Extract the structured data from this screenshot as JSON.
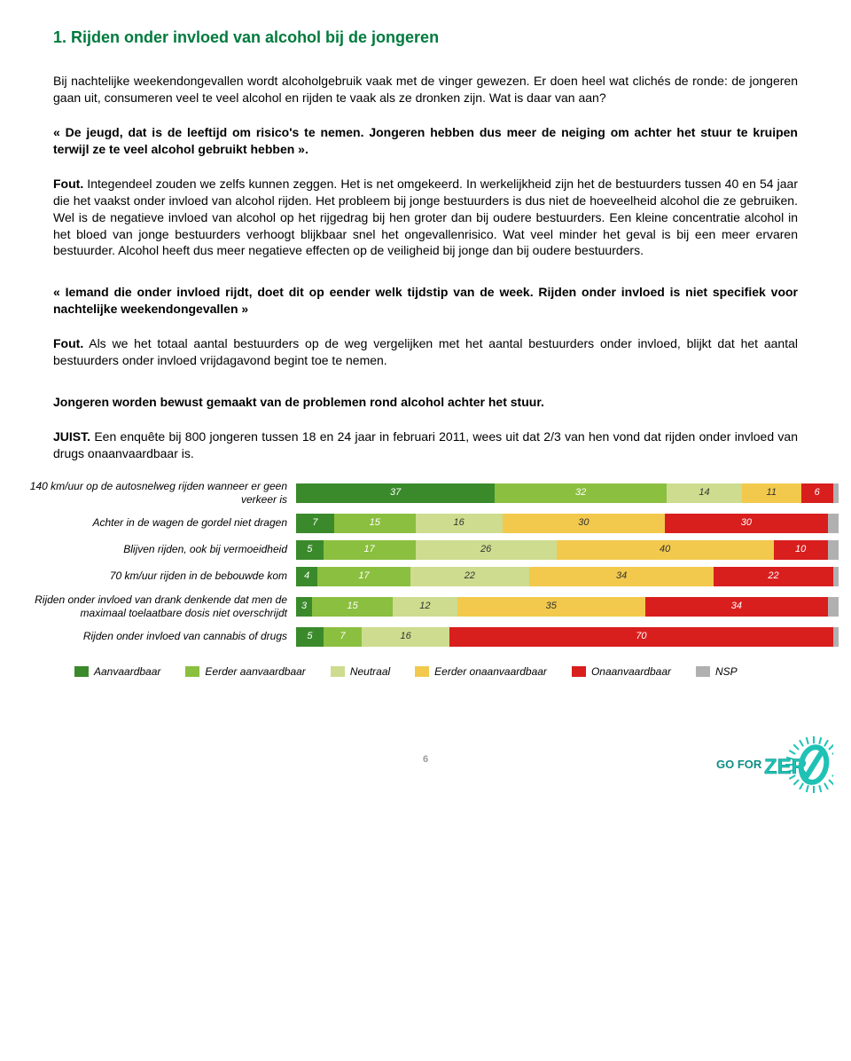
{
  "title": "1. Rijden onder invloed van alcohol bij de jongeren",
  "p1": "Bij nachtelijke weekendongevallen wordt alcoholgebruik vaak met de vinger gewezen. Er doen heel wat clichés de ronde: de jongeren gaan uit, consumeren veel te veel alcohol en rijden te vaak als ze dronken zijn. Wat is daar van aan?",
  "q1": "« De jeugd, dat is de leeftijd om risico's te nemen. Jongeren hebben dus meer de neiging om achter het stuur te kruipen terwijl ze te veel alcohol gebruikt hebben ».",
  "a1_lead": "Fout.",
  "a1_body": " Integendeel zouden we zelfs kunnen zeggen. Het is net omgekeerd. In werkelijkheid zijn het de bestuurders tussen 40 en 54 jaar die het vaakst onder invloed van alcohol rijden. Het probleem bij jonge bestuurders is dus niet de hoeveelheid alcohol die ze gebruiken. Wel is de negatieve invloed van alcohol op het rijgedrag bij hen groter dan bij oudere bestuurders. Een kleine concentratie alcohol in het bloed van jonge bestuurders verhoogt blijkbaar snel het ongevallenrisico. Wat veel minder het geval is bij een meer ervaren bestuurder. Alcohol heeft dus meer negatieve effecten op de veiligheid bij jonge dan bij oudere bestuurders.",
  "q2": "« Iemand die onder invloed rijdt, doet dit op eender welk tijdstip van de week. Rijden onder invloed is niet specifiek voor nachtelijke weekendongevallen »",
  "a2_lead": "Fout.",
  "a2_body": " Als we het totaal aantal bestuurders op de weg vergelijken met het aantal bestuurders onder invloed, blijkt dat het aantal bestuurders onder invloed vrijdagavond begint toe te nemen.",
  "q3": "Jongeren worden bewust gemaakt van de problemen rond alcohol achter het stuur.",
  "a3_lead": "JUIST.",
  "a3_body": " Een enquête bij 800 jongeren tussen 18 en 24 jaar in februari 2011, wees uit dat 2/3 van hen vond dat rijden onder invloed van drugs onaanvaardbaar is.",
  "chart": {
    "type": "stacked-bar-horizontal",
    "colors": {
      "c1": "#3a8a2b",
      "c2": "#8bbf3f",
      "c3": "#cddc8e",
      "c4": "#f2c94c",
      "c5": "#d91e1e",
      "c6": "#b0b0b0"
    },
    "rows": [
      {
        "label": "140 km/uur op de autosnelweg rijden wanneer er geen verkeer is",
        "segs": [
          {
            "k": "c1",
            "v": 37
          },
          {
            "k": "c2",
            "v": 32
          },
          {
            "k": "c3",
            "v": 14
          },
          {
            "k": "c4",
            "v": 11
          },
          {
            "k": "c5",
            "v": 6
          },
          {
            "k": "c6",
            "v": 1
          }
        ]
      },
      {
        "label": "Achter in de wagen de gordel niet dragen",
        "segs": [
          {
            "k": "c1",
            "v": 7
          },
          {
            "k": "c2",
            "v": 15
          },
          {
            "k": "c3",
            "v": 16
          },
          {
            "k": "c4",
            "v": 30
          },
          {
            "k": "c5",
            "v": 30
          },
          {
            "k": "c6",
            "v": 2
          }
        ]
      },
      {
        "label": "Blijven rijden, ook bij vermoeidheid",
        "segs": [
          {
            "k": "c1",
            "v": 5
          },
          {
            "k": "c2",
            "v": 17
          },
          {
            "k": "c3",
            "v": 26
          },
          {
            "k": "c4",
            "v": 40
          },
          {
            "k": "c5",
            "v": 10
          },
          {
            "k": "c6",
            "v": 2
          }
        ]
      },
      {
        "label": "70 km/uur rijden in de bebouwde kom",
        "segs": [
          {
            "k": "c1",
            "v": 4
          },
          {
            "k": "c2",
            "v": 17
          },
          {
            "k": "c3",
            "v": 22
          },
          {
            "k": "c4",
            "v": 34
          },
          {
            "k": "c5",
            "v": 22
          },
          {
            "k": "c6",
            "v": 1
          }
        ]
      },
      {
        "label": "Rijden onder invloed van drank denkende dat men de maximaal toelaatbare dosis niet overschrijdt",
        "segs": [
          {
            "k": "c1",
            "v": 3
          },
          {
            "k": "c2",
            "v": 15
          },
          {
            "k": "c3",
            "v": 12
          },
          {
            "k": "c4",
            "v": 35
          },
          {
            "k": "c5",
            "v": 34
          },
          {
            "k": "c6",
            "v": 2
          }
        ]
      },
      {
        "label": "Rijden onder invloed van cannabis of drugs",
        "segs": [
          {
            "k": "c1",
            "v": 5
          },
          {
            "k": "c2",
            "v": 7
          },
          {
            "k": "c3",
            "v": 16
          },
          {
            "k": "c4",
            "v": 0
          },
          {
            "k": "c5",
            "v": 70
          },
          {
            "k": "c6",
            "v": 1
          }
        ]
      }
    ],
    "legend": [
      {
        "k": "c1",
        "label": "Aanvaardbaar"
      },
      {
        "k": "c2",
        "label": "Eerder aanvaardbaar"
      },
      {
        "k": "c3",
        "label": "Neutraal"
      },
      {
        "k": "c4",
        "label": "Eerder onaanvaardbaar"
      },
      {
        "k": "c5",
        "label": "Onaanvaardbaar"
      },
      {
        "k": "c6",
        "label": "NSP"
      }
    ]
  },
  "page_number": "6",
  "logo": {
    "text_go_for": "GO FOR",
    "text_zer": "ZER",
    "main_color": "#1fc2b5",
    "outline": "#0d8d84"
  }
}
